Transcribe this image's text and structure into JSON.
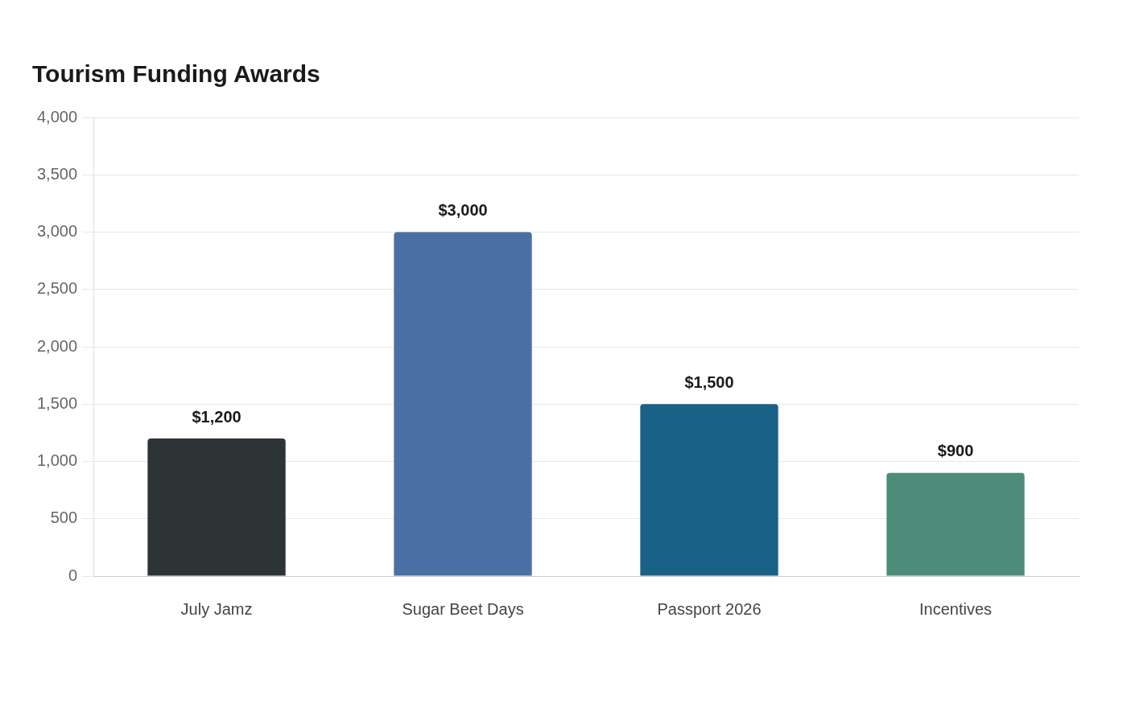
{
  "chart_data": {
    "type": "bar",
    "title": "Tourism Funding Awards",
    "categories": [
      "July Jamz",
      "Sugar Beet Days",
      "Passport 2026",
      "Incentives"
    ],
    "values": [
      1200,
      3000,
      1500,
      900
    ],
    "colors": [
      "#2d3436",
      "#4a6fa5",
      "#1a6188",
      "#4e8c7a"
    ],
    "value_labels": [
      "$1,200",
      "$3,000",
      "$1,500",
      "$900"
    ],
    "ylim": [
      0,
      4000
    ],
    "yticks": [
      0,
      500,
      {
        "value": 1000,
        "label": "1,000"
      },
      {
        "value": 1500,
        "label": "1,500"
      },
      {
        "value": 2000,
        "label": "2,000"
      },
      {
        "value": 2500,
        "label": "2,500"
      },
      {
        "value": 3000,
        "label": "3,000"
      },
      {
        "value": 3500,
        "label": "3,500"
      },
      {
        "value": 4000,
        "label": "4,000"
      }
    ],
    "grid": "y"
  }
}
